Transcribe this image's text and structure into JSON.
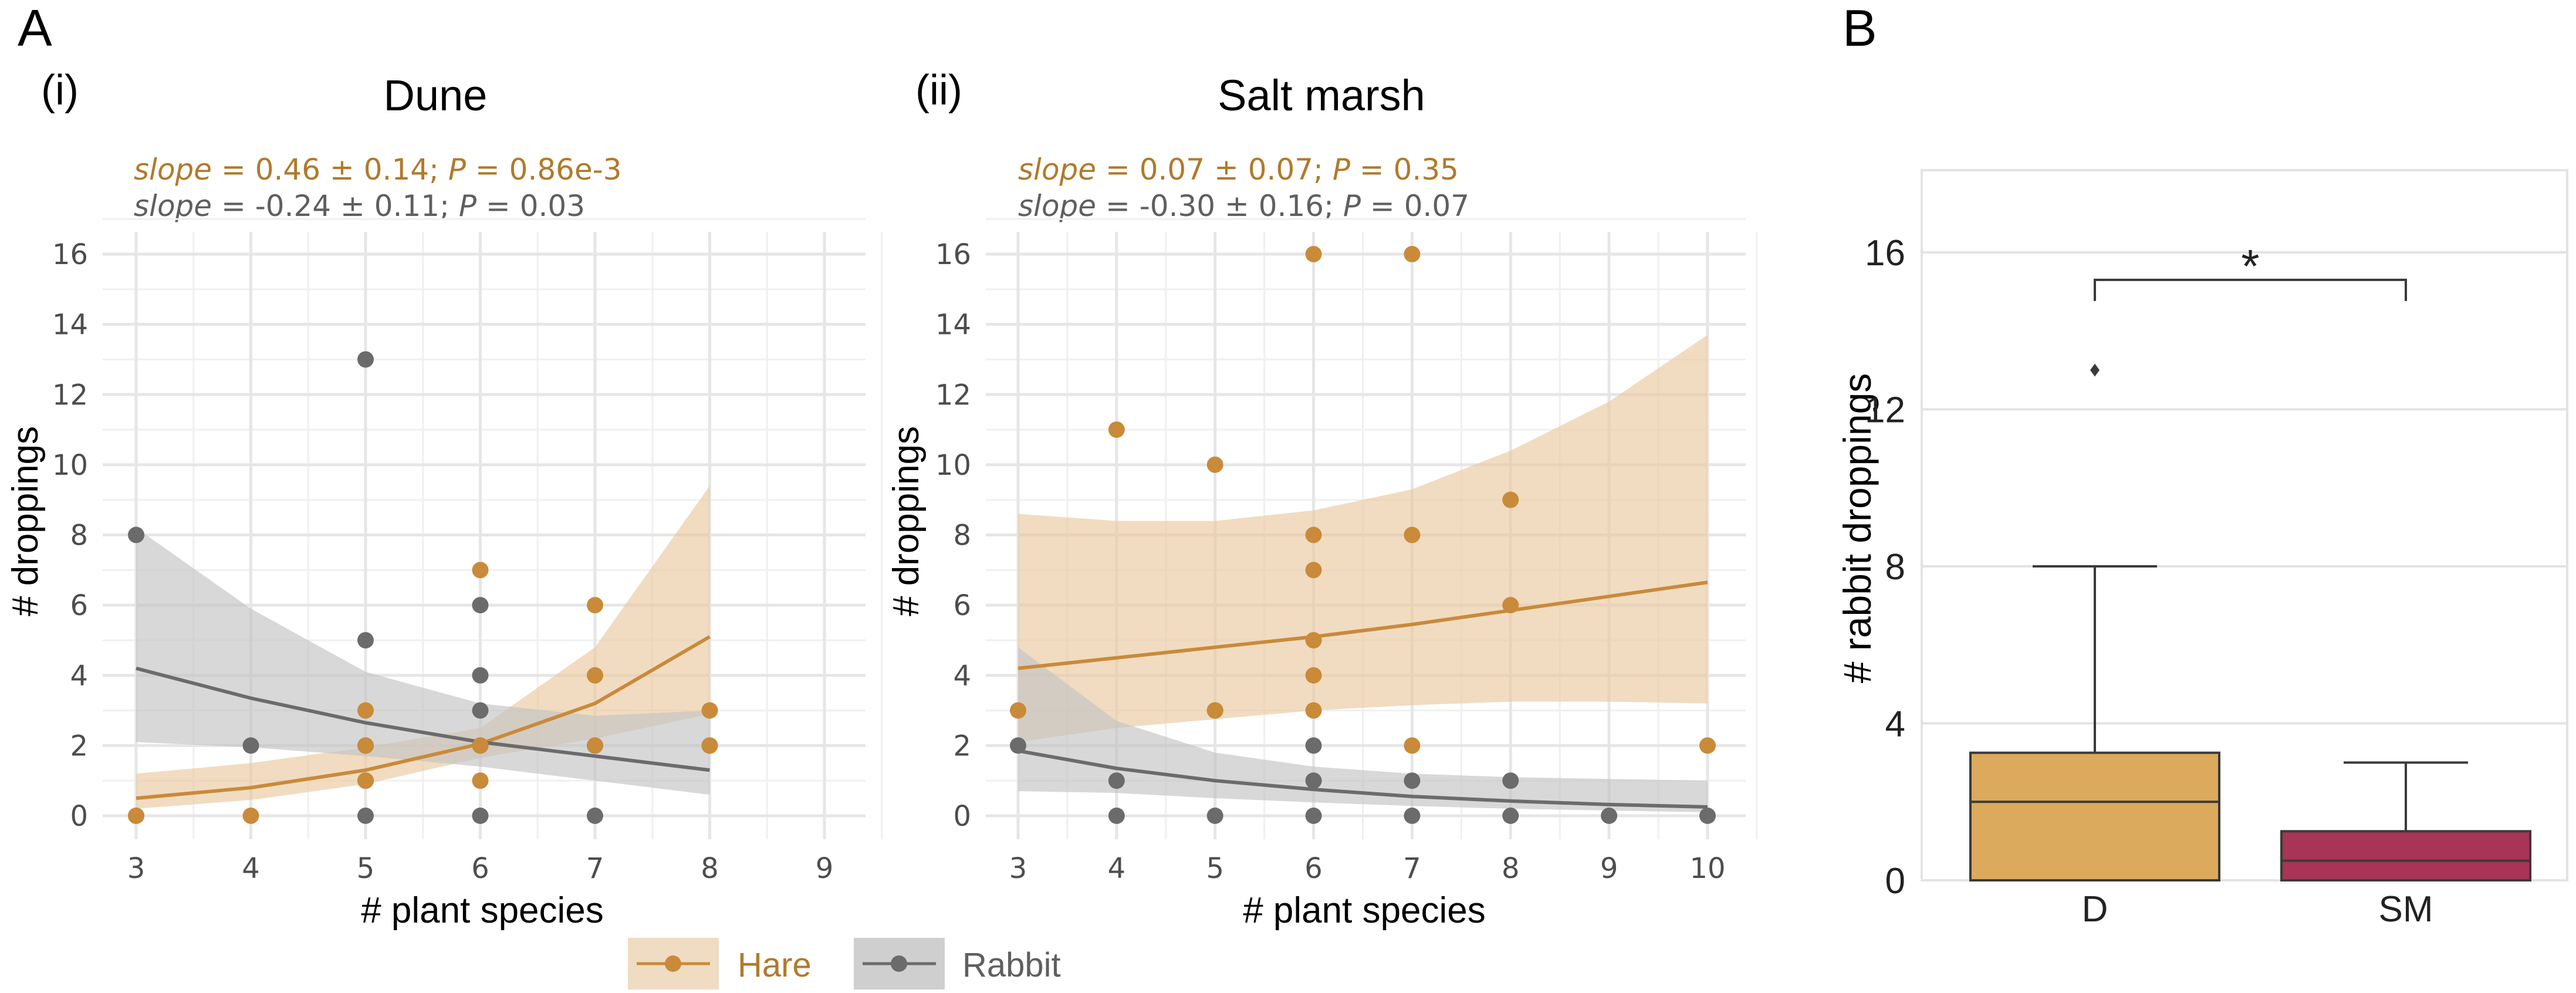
{
  "panel_labels": {
    "a": "A",
    "b": "B",
    "i": "(i)",
    "ii": "(ii)"
  },
  "legend": [
    {
      "name": "Hare",
      "color": "#c98a3a",
      "icon": "orange-line-point"
    },
    {
      "name": "Rabbit",
      "color": "#6b6b6b",
      "icon": "grey-line-point"
    }
  ],
  "colors": {
    "hare": "#c98a3a",
    "hare_band": "#e9c99f",
    "hare_text": "#b07a2c",
    "rabbit": "#6b6b6b",
    "rabbit_band": "#c3c3c3",
    "rabbit_text": "#5f5f5f",
    "box_D": "#dcaa5c",
    "box_SM": "#a83457"
  },
  "chart_data": [
    {
      "type": "scatter",
      "title": "Dune",
      "xlabel": "# plant species",
      "ylabel": "# droppings",
      "xlim": [
        2.9,
        9.3
      ],
      "ylim": [
        -0.8,
        17
      ],
      "xticks": [
        "3",
        "4",
        "5",
        "6",
        "7",
        "8",
        "9"
      ],
      "yticks": [
        "0",
        "2",
        "4",
        "6",
        "8",
        "10",
        "12",
        "14",
        "16"
      ],
      "annotations": [
        {
          "label": "slope",
          "text": " = 0.46 ± 0.14; ",
          "p_label": "P",
          "p_text": " = 0.86e-3",
          "series": "Hare"
        },
        {
          "label": "slope",
          "text": " = -0.24 ± 0.11; ",
          "p_label": "P",
          "p_text": " = 0.03",
          "series": "Rabbit"
        }
      ],
      "series": [
        {
          "name": "Hare",
          "points": [
            [
              3,
              0
            ],
            [
              4,
              0
            ],
            [
              5,
              2
            ],
            [
              5,
              3
            ],
            [
              5,
              1
            ],
            [
              6,
              1
            ],
            [
              6,
              2
            ],
            [
              6,
              7
            ],
            [
              7,
              6
            ],
            [
              7,
              4
            ],
            [
              7,
              2
            ],
            [
              8,
              3
            ],
            [
              8,
              2
            ]
          ],
          "fit": [
            [
              3,
              0.5
            ],
            [
              4,
              0.8
            ],
            [
              5,
              1.3
            ],
            [
              6,
              2.05
            ],
            [
              7,
              3.2
            ],
            [
              8,
              5.1
            ]
          ],
          "band_upper": [
            [
              3,
              1.2
            ],
            [
              4,
              1.5
            ],
            [
              5,
              1.95
            ],
            [
              6,
              2.5
            ],
            [
              7,
              4.8
            ],
            [
              8,
              9.4
            ]
          ],
          "band_lower": [
            [
              3,
              0.2
            ],
            [
              4,
              0.45
            ],
            [
              5,
              0.9
            ],
            [
              6,
              1.65
            ],
            [
              7,
              2.2
            ],
            [
              8,
              2.9
            ]
          ]
        },
        {
          "name": "Rabbit",
          "points": [
            [
              3,
              8
            ],
            [
              3,
              0
            ],
            [
              4,
              2
            ],
            [
              5,
              13
            ],
            [
              5,
              5
            ],
            [
              5,
              2
            ],
            [
              5,
              1
            ],
            [
              5,
              0
            ],
            [
              6,
              6
            ],
            [
              6,
              4
            ],
            [
              6,
              3
            ],
            [
              6,
              2
            ],
            [
              6,
              0
            ],
            [
              7,
              2
            ],
            [
              7,
              0
            ],
            [
              8,
              2
            ]
          ],
          "fit": [
            [
              3,
              4.2
            ],
            [
              4,
              3.35
            ],
            [
              5,
              2.65
            ],
            [
              6,
              2.1
            ],
            [
              7,
              1.7
            ],
            [
              8,
              1.3
            ]
          ],
          "band_upper": [
            [
              3,
              8.2
            ],
            [
              4,
              5.9
            ],
            [
              5,
              4.1
            ],
            [
              6,
              3.2
            ],
            [
              7,
              2.85
            ],
            [
              8,
              3.0
            ]
          ],
          "band_lower": [
            [
              3,
              2.1
            ],
            [
              4,
              1.95
            ],
            [
              5,
              1.7
            ],
            [
              6,
              1.4
            ],
            [
              7,
              1.0
            ],
            [
              8,
              0.6
            ]
          ]
        }
      ]
    },
    {
      "type": "scatter",
      "title": "Salt marsh",
      "xlabel": "# plant species",
      "ylabel": "# droppings",
      "xlim": [
        2.9,
        10.3
      ],
      "ylim": [
        -0.8,
        17
      ],
      "xticks": [
        "3",
        "4",
        "5",
        "6",
        "7",
        "8",
        "9",
        "10"
      ],
      "yticks": [
        "0",
        "2",
        "4",
        "6",
        "8",
        "10",
        "12",
        "14",
        "16"
      ],
      "annotations": [
        {
          "label": "slope",
          "text": " = 0.07 ± 0.07; ",
          "p_label": "P",
          "p_text": " = 0.35",
          "series": "Hare"
        },
        {
          "label": "slope",
          "text": " = -0.30 ± 0.16; ",
          "p_label": "P",
          "p_text": " = 0.07",
          "series": "Rabbit"
        }
      ],
      "series": [
        {
          "name": "Hare",
          "points": [
            [
              3,
              3
            ],
            [
              4,
              11
            ],
            [
              5,
              10
            ],
            [
              5,
              3
            ],
            [
              6,
              16
            ],
            [
              6,
              8
            ],
            [
              6,
              7
            ],
            [
              6,
              5
            ],
            [
              6,
              4
            ],
            [
              6,
              3
            ],
            [
              7,
              16
            ],
            [
              7,
              8
            ],
            [
              7,
              2
            ],
            [
              8,
              9
            ],
            [
              8,
              6
            ],
            [
              10,
              2
            ]
          ],
          "fit": [
            [
              3,
              4.2
            ],
            [
              4,
              4.5
            ],
            [
              5,
              4.8
            ],
            [
              6,
              5.1
            ],
            [
              7,
              5.45
            ],
            [
              8,
              5.85
            ],
            [
              9,
              6.25
            ],
            [
              10,
              6.65
            ]
          ],
          "band_upper": [
            [
              3,
              8.6
            ],
            [
              4,
              8.4
            ],
            [
              5,
              8.4
            ],
            [
              6,
              8.7
            ],
            [
              7,
              9.3
            ],
            [
              8,
              10.4
            ],
            [
              9,
              11.8
            ],
            [
              10,
              13.7
            ]
          ],
          "band_lower": [
            [
              3,
              2.1
            ],
            [
              4,
              2.5
            ],
            [
              5,
              2.75
            ],
            [
              6,
              3.0
            ],
            [
              7,
              3.15
            ],
            [
              8,
              3.25
            ],
            [
              9,
              3.25
            ],
            [
              10,
              3.2
            ]
          ]
        },
        {
          "name": "Rabbit",
          "points": [
            [
              3,
              2
            ],
            [
              4,
              1
            ],
            [
              4,
              0
            ],
            [
              5,
              3
            ],
            [
              5,
              0
            ],
            [
              6,
              2
            ],
            [
              6,
              1
            ],
            [
              6,
              0
            ],
            [
              7,
              1
            ],
            [
              7,
              0
            ],
            [
              8,
              1
            ],
            [
              8,
              0
            ],
            [
              9,
              0
            ],
            [
              10,
              0
            ]
          ],
          "fit": [
            [
              3,
              1.85
            ],
            [
              4,
              1.35
            ],
            [
              5,
              1.0
            ],
            [
              6,
              0.75
            ],
            [
              7,
              0.55
            ],
            [
              8,
              0.42
            ],
            [
              9,
              0.32
            ],
            [
              10,
              0.25
            ]
          ],
          "band_upper": [
            [
              3,
              4.8
            ],
            [
              4,
              2.7
            ],
            [
              5,
              1.8
            ],
            [
              6,
              1.4
            ],
            [
              7,
              1.2
            ],
            [
              8,
              1.1
            ],
            [
              9,
              1.05
            ],
            [
              10,
              1.0
            ]
          ],
          "band_lower": [
            [
              3,
              0.7
            ],
            [
              4,
              0.65
            ],
            [
              5,
              0.5
            ],
            [
              6,
              0.38
            ],
            [
              7,
              0.28
            ],
            [
              8,
              0.2
            ],
            [
              9,
              0.15
            ],
            [
              10,
              0.1
            ]
          ]
        }
      ]
    },
    {
      "type": "box",
      "ylabel": "# rabbit droppings",
      "categories": [
        "D",
        "SM"
      ],
      "ylim": [
        0,
        18
      ],
      "yticks": [
        "0",
        "4",
        "8",
        "12",
        "16"
      ],
      "boxes": [
        {
          "name": "D",
          "whisker_low": 0,
          "q1": 0,
          "median": 2,
          "q3": 3.25,
          "whisker_high": 8,
          "outliers": [
            13
          ]
        },
        {
          "name": "SM",
          "whisker_low": 0,
          "q1": 0,
          "median": 0.5,
          "q3": 1.25,
          "whisker_high": 3,
          "outliers": []
        }
      ],
      "significance": {
        "between": [
          "D",
          "SM"
        ],
        "label": "*",
        "y": 15.3
      }
    }
  ]
}
